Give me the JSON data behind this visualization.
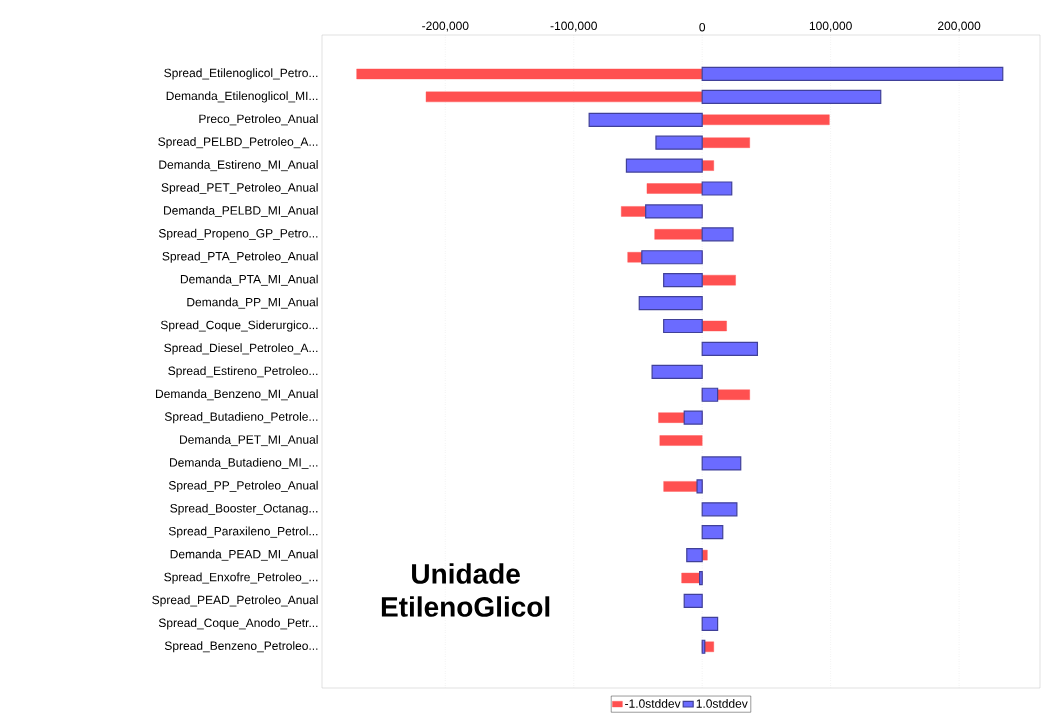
{
  "chart_data": {
    "type": "bar",
    "orientation": "horizontal",
    "categories": [
      "Spread_Etilenoglicol_Petro...",
      "Demanda_Etilenoglicol_MI...",
      "Preco_Petroleo_Anual",
      "Spread_PELBD_Petroleo_A...",
      "Demanda_Estireno_MI_Anual",
      "Spread_PET_Petroleo_Anual",
      "Demanda_PELBD_MI_Anual",
      "Spread_Propeno_GP_Petro...",
      "Spread_PTA_Petroleo_Anual",
      "Demanda_PTA_MI_Anual",
      "Demanda_PP_MI_Anual",
      "Spread_Coque_Siderurgico...",
      "Spread_Diesel_Petroleo_A...",
      "Spread_Estireno_Petroleo...",
      "Demanda_Benzeno_MI_Anual",
      "Spread_Butadieno_Petrole...",
      "Demanda_PET_MI_Anual",
      "Demanda_Butadieno_MI_...",
      "Spread_PP_Petroleo_Anual",
      "Spread_Booster_Octanag...",
      "Spread_Paraxileno_Petrol...",
      "Demanda_PEAD_MI_Anual",
      "Spread_Enxofre_Petroleo_...",
      "Spread_PEAD_Petroleo_Anual",
      "Spread_Coque_Anodo_Petr...",
      "Spread_Benzeno_Petroleo..."
    ],
    "series": [
      {
        "name": "-1.0stddev",
        "color": "#ff5050",
        "values": [
          -269000,
          -215000,
          99000,
          37000,
          9000,
          -43000,
          -63000,
          -37000,
          -58000,
          26000,
          null,
          19000,
          null,
          null,
          37000,
          -34000,
          -33000,
          null,
          -30000,
          null,
          null,
          4000,
          -16000,
          null,
          null,
          9000
        ]
      },
      {
        "name": "1.0stddev",
        "color": "#6b6bff",
        "values": [
          234000,
          139000,
          -88000,
          -36000,
          -59000,
          23000,
          -44000,
          24000,
          -47000,
          -30000,
          -49000,
          -30000,
          43000,
          -39000,
          12000,
          -14000,
          null,
          30000,
          -4000,
          27000,
          16000,
          -12000,
          -2000,
          -14000,
          12000,
          2000
        ]
      }
    ],
    "xlim": [
      -296000,
      263000
    ],
    "xticks": [
      {
        "value": -200000,
        "label": "-200,000"
      },
      {
        "value": -100000,
        "label": "-100,000"
      },
      0,
      {
        "value": 100000,
        "label": "100,000"
      },
      {
        "value": 200000,
        "label": "200,000"
      }
    ],
    "grid": "x",
    "legend": "bottom",
    "annotations": [
      "Unidade EtilenoGlicol"
    ]
  }
}
